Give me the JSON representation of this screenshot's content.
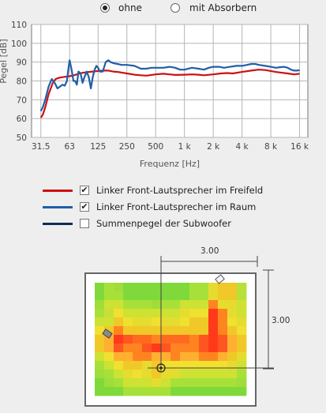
{
  "mode_selector": {
    "options": [
      {
        "label": "ohne",
        "selected": true
      },
      {
        "label": "mit Absorbern",
        "selected": false
      }
    ]
  },
  "chart_data": {
    "type": "line",
    "xlabel": "Frequenz [Hz]",
    "ylabel": "Pegel [dB]",
    "x_scale": "log",
    "x_ticks": [
      31.5,
      63,
      125,
      250,
      500,
      1000,
      2000,
      4000,
      8000,
      16000
    ],
    "x_tick_labels": [
      "31.5",
      "63",
      "125",
      "250",
      "500",
      "1 k",
      "2 k",
      "4 k",
      "8 k",
      "16 k"
    ],
    "ylim": [
      50,
      110
    ],
    "y_ticks": [
      50,
      60,
      70,
      80,
      90,
      100,
      110
    ],
    "grid": true,
    "series": [
      {
        "name": "Linker Front-Lautsprecher im Freifeld",
        "color": "#cc1111",
        "x": [
          31.5,
          33,
          35,
          38,
          42,
          45,
          50,
          56,
          63,
          70,
          80,
          90,
          100,
          110,
          125,
          140,
          160,
          180,
          200,
          250,
          300,
          350,
          400,
          500,
          600,
          700,
          800,
          1000,
          1200,
          1400,
          1600,
          2000,
          2400,
          2800,
          3200,
          4000,
          5000,
          6000,
          7000,
          8000,
          9000,
          10000,
          12000,
          14000,
          16000
        ],
        "y": [
          60.5,
          62,
          66,
          73,
          79,
          81,
          81.8,
          82.2,
          82.5,
          83,
          84,
          84.5,
          84.8,
          85,
          85.3,
          85.5,
          85.5,
          85,
          84.8,
          84,
          83.3,
          83,
          82.8,
          83.5,
          83.8,
          83.5,
          83.2,
          83.3,
          83.5,
          83.3,
          83,
          83.5,
          84,
          84.2,
          84,
          84.8,
          85.5,
          86,
          85.8,
          85.3,
          84.8,
          84.5,
          84,
          83.5,
          83.8
        ]
      },
      {
        "name": "Linker Front-Lautsprecher im Raum",
        "color": "#1f5fa8",
        "x": [
          31.5,
          33,
          35,
          38,
          41,
          44,
          47,
          50,
          53,
          56,
          59,
          61,
          63,
          66,
          69,
          72,
          75,
          78,
          82,
          86,
          90,
          95,
          100,
          105,
          110,
          115,
          120,
          125,
          130,
          140,
          150,
          160,
          170,
          180,
          200,
          220,
          250,
          300,
          350,
          400,
          450,
          500,
          600,
          700,
          800,
          900,
          1000,
          1200,
          1400,
          1600,
          1800,
          2000,
          2300,
          2600,
          3000,
          3500,
          4000,
          4500,
          5000,
          5500,
          6000,
          7000,
          8000,
          9000,
          10000,
          11000,
          12000,
          13000,
          14000,
          15000,
          16000
        ],
        "y": [
          64,
          66,
          70,
          77,
          81,
          79,
          76,
          77,
          78,
          77.5,
          80,
          86,
          91,
          86,
          80,
          80,
          78,
          85,
          84,
          79,
          82,
          85,
          82,
          76,
          82,
          86,
          88,
          87,
          85,
          85,
          90,
          91,
          90,
          89.5,
          89,
          88.5,
          88.5,
          88,
          86.5,
          86.5,
          87,
          87,
          87,
          87.5,
          87,
          86,
          86,
          87,
          86.5,
          86,
          87,
          87.5,
          87.5,
          87,
          87.5,
          88,
          88,
          88.5,
          89,
          89,
          88.5,
          88,
          87.5,
          87,
          87.3,
          87.5,
          87,
          86,
          85.5,
          85.5,
          85.7
        ]
      },
      {
        "name": "Summenpegel der Subwoofer",
        "color": "#0d2d55",
        "x": [],
        "y": []
      }
    ]
  },
  "legend": [
    {
      "label": "Linker Front-Lautsprecher im Freifeld",
      "checked": true,
      "color": "#cc1111"
    },
    {
      "label": "Linker Front-Lautsprecher im Raum",
      "checked": true,
      "color": "#1f5fa8"
    },
    {
      "label": "Summenpegel der Subwoofer",
      "checked": false,
      "color": "#0d2d55"
    }
  ],
  "room_plan": {
    "width_label": "3.00",
    "depth_label": "3.00",
    "heatmap": [
      [
        "#7fd93a",
        "#a8e03a",
        "#9fdd3a",
        "#7fd93a",
        "#7fd93a",
        "#7fd93a",
        "#7fd93a",
        "#7fd93a",
        "#7fd93a",
        "#7fd93a",
        "#a8e03a",
        "#a8e03a",
        "#e6dc30",
        "#f0c828",
        "#f0c828",
        "#b5e13a"
      ],
      [
        "#7fd93a",
        "#a8e03a",
        "#a8e03a",
        "#7fd93a",
        "#7fd93a",
        "#7fd93a",
        "#7fd93a",
        "#7fd93a",
        "#7fd93a",
        "#7fd93a",
        "#a8e03a",
        "#a8e03a",
        "#e6dc30",
        "#f0c828",
        "#f0c828",
        "#b5e13a"
      ],
      [
        "#9fdd3a",
        "#cde232",
        "#cde232",
        "#a8e03a",
        "#a8e03a",
        "#a8e03a",
        "#9fdd3a",
        "#a8e03a",
        "#a8e03a",
        "#cde232",
        "#cde232",
        "#cde232",
        "#ff8420",
        "#e6dc30",
        "#e6dc30",
        "#cde232"
      ],
      [
        "#a8e03a",
        "#c8e036",
        "#f0e030",
        "#cde232",
        "#cde232",
        "#cde232",
        "#cde232",
        "#cde232",
        "#cde232",
        "#e6dc30",
        "#f0e030",
        "#f0e030",
        "#ff3a1a",
        "#ff8420",
        "#e6dc30",
        "#cde232"
      ],
      [
        "#cde232",
        "#cde232",
        "#f0c828",
        "#f0e030",
        "#e6dc30",
        "#e6dc30",
        "#f0e030",
        "#e6dc30",
        "#e6dc30",
        "#f0e030",
        "#f0c828",
        "#f0c828",
        "#ff3a1a",
        "#ff8420",
        "#f0e030",
        "#e6dc30"
      ],
      [
        "#f0e030",
        "#f0c828",
        "#ff8420",
        "#f0c828",
        "#f0c828",
        "#f0c828",
        "#f0c828",
        "#f0c828",
        "#f0c828",
        "#f0c828",
        "#f0c828",
        "#f0c828",
        "#ff3a1a",
        "#ff8420",
        "#f0c828",
        "#f0e030"
      ],
      [
        "#f0c828",
        "#ffb030",
        "#ff3a1a",
        "#ff5520",
        "#ff6a20",
        "#ff6a20",
        "#ff8420",
        "#ff6a20",
        "#ff6a20",
        "#ff6a20",
        "#ff8420",
        "#ff5520",
        "#ff3a1a",
        "#ff5520",
        "#ffb030",
        "#f0c828"
      ],
      [
        "#f0c828",
        "#ffb030",
        "#ff5520",
        "#ff8420",
        "#ff8420",
        "#ff5520",
        "#ff3a1a",
        "#ff5520",
        "#ff8420",
        "#ff8420",
        "#ff8420",
        "#ff5520",
        "#ff3a1a",
        "#ff5520",
        "#ffb030",
        "#f0c828"
      ],
      [
        "#cde232",
        "#f0e030",
        "#ffb030",
        "#ffb030",
        "#ff8420",
        "#ff8420",
        "#ffb030",
        "#ffb030",
        "#ff8420",
        "#ffb030",
        "#ffb030",
        "#ff8420",
        "#ff8420",
        "#ffb030",
        "#f0c828",
        "#e6dc30"
      ],
      [
        "#a8e03a",
        "#cde232",
        "#f0e030",
        "#f0c828",
        "#f0c828",
        "#e6dc30",
        "#f0c828",
        "#f0e030",
        "#f0e030",
        "#f0e030",
        "#f0e030",
        "#f0e030",
        "#f0e030",
        "#f0e030",
        "#e6dc30",
        "#cde232"
      ],
      [
        "#9fdd3a",
        "#a8e03a",
        "#cde232",
        "#e6dc30",
        "#f0e030",
        "#e6dc30",
        "#f0c828",
        "#e6dc30",
        "#e6dc30",
        "#cde232",
        "#cde232",
        "#cde232",
        "#cde232",
        "#cde232",
        "#cde232",
        "#a8e03a"
      ],
      [
        "#7fd93a",
        "#9fdd3a",
        "#a8e03a",
        "#cde232",
        "#cde232",
        "#cde232",
        "#e6dc30",
        "#cde232",
        "#a8e03a",
        "#a8e03a",
        "#a8e03a",
        "#a8e03a",
        "#a8e03a",
        "#a8e03a",
        "#a8e03a",
        "#9fdd3a"
      ],
      [
        "#7fd93a",
        "#7fd93a",
        "#7fd93a",
        "#a8e03a",
        "#a8e03a",
        "#a8e03a",
        "#a8e03a",
        "#a8e03a",
        "#7fd93a",
        "#7fd93a",
        "#7fd93a",
        "#7fd93a",
        "#7fd93a",
        "#7fd93a",
        "#7fd93a",
        "#7fd93a"
      ]
    ]
  }
}
